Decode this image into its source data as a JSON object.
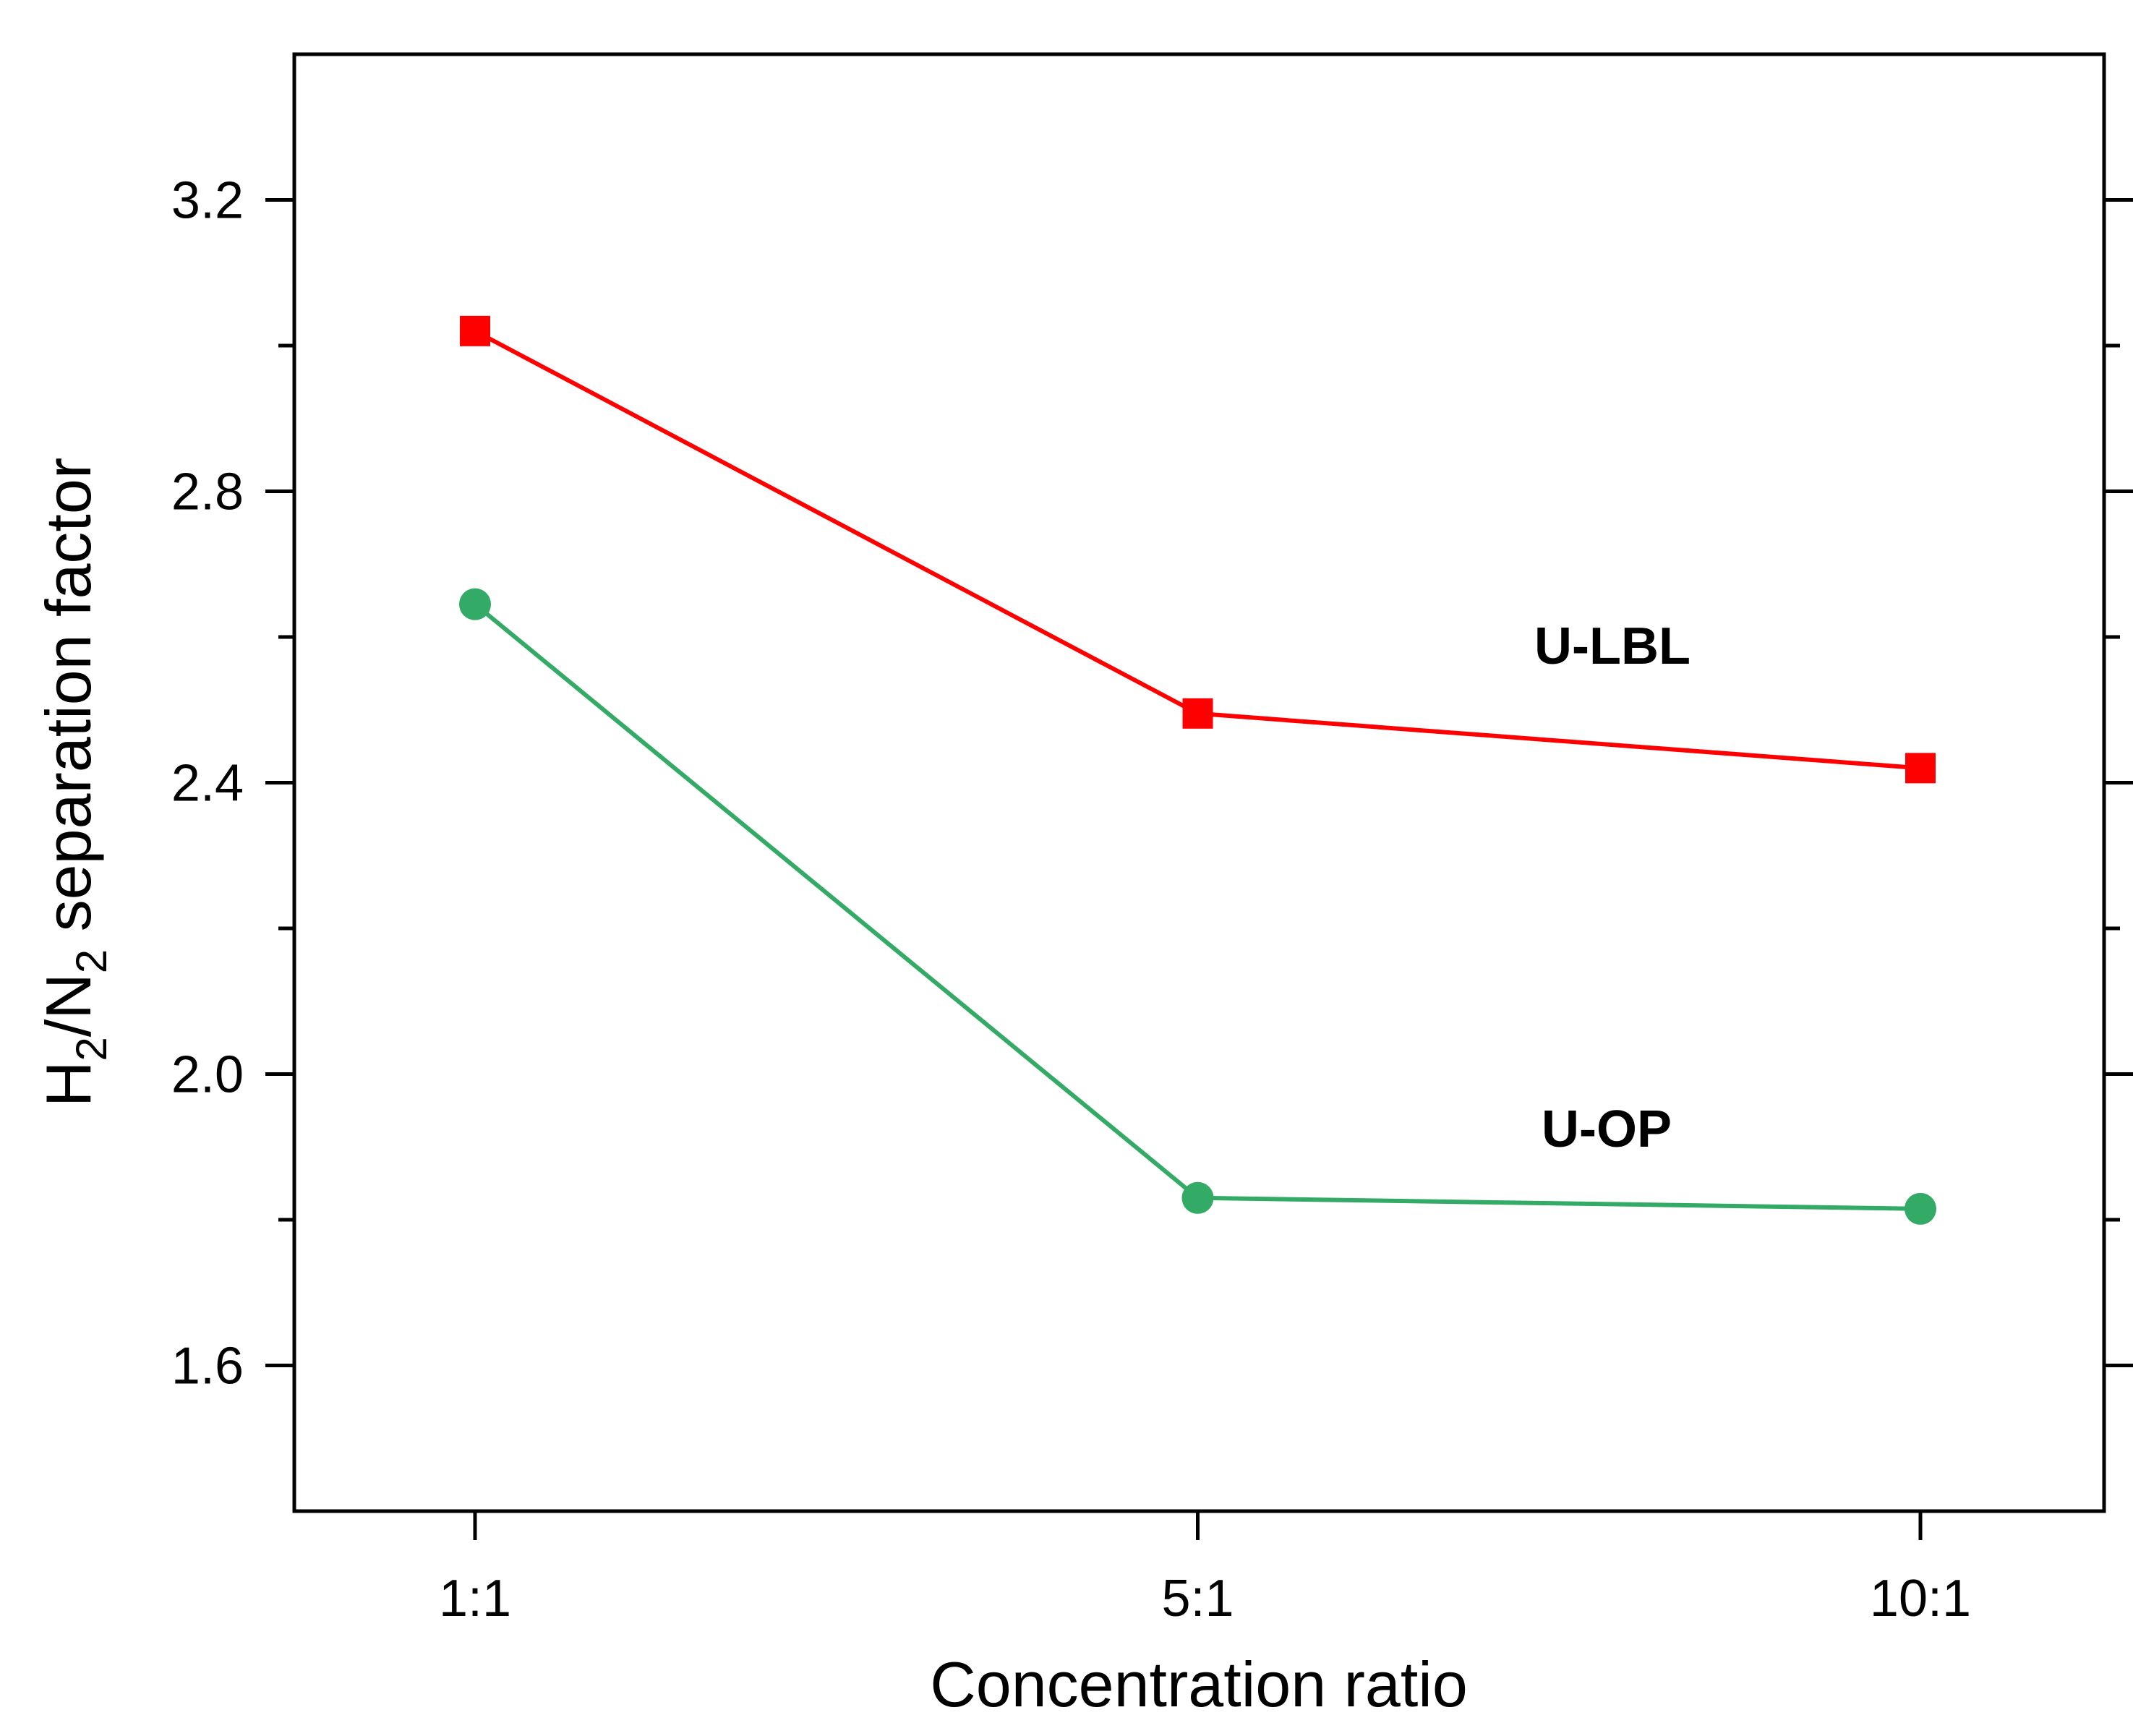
{
  "chart_data": {
    "type": "line",
    "title": "",
    "xlabel": "Concentration ratio",
    "ylabel": {
      "p1": "H",
      "s1": "2",
      "p2": "/N",
      "s2": "2",
      "p3": " separation factor"
    },
    "categories": [
      "1:1",
      "5:1",
      "10:1"
    ],
    "ylim": [
      1.4,
      3.4
    ],
    "yticks_major": [
      1.6,
      2.0,
      2.4,
      2.8,
      3.2
    ],
    "yticks_major_labels": [
      "1.6",
      "2.0",
      "2.4",
      "2.8",
      "3.2"
    ],
    "yticks_minor": [
      1.8,
      2.2,
      2.6,
      3.0
    ],
    "grid": false,
    "series": [
      {
        "name": "U-LBL",
        "values": [
          3.02,
          2.495,
          2.42
        ],
        "color": "#ff0000",
        "marker": "square"
      },
      {
        "name": "U-OP",
        "values": [
          2.645,
          1.83,
          1.815
        ],
        "color": "#33aa66",
        "marker": "circle"
      }
    ],
    "annotations": [
      {
        "text": "U-LBL",
        "series": "U-LBL"
      },
      {
        "text": "U-OP",
        "series": "U-OP"
      }
    ]
  }
}
